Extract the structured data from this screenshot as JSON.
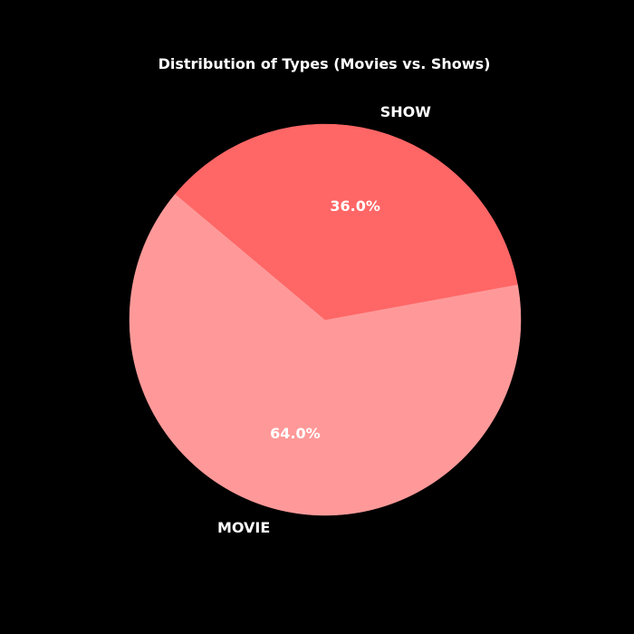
{
  "chart_data": {
    "type": "pie",
    "title": "Distribution of Types (Movies vs. Shows)",
    "start_angle_deg": 140,
    "direction": "counterclockwise",
    "slices": [
      {
        "label": "MOVIE",
        "value": 64.0,
        "pct_label": "64.0%",
        "color": "#ff9999"
      },
      {
        "label": "SHOW",
        "value": 36.0,
        "pct_label": "36.0%",
        "color": "#ff6666"
      }
    ],
    "background_color": "#000000",
    "text_color": "#ffffff"
  }
}
